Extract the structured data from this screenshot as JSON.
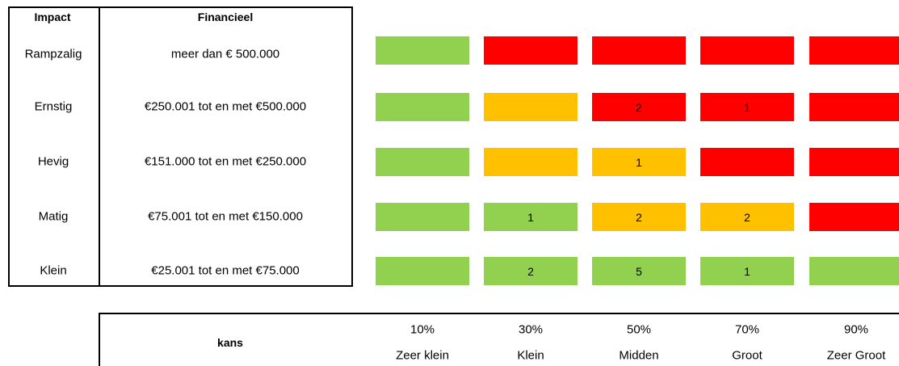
{
  "impact_table": {
    "headers": [
      "Impact",
      "Financieel"
    ],
    "rows": [
      {
        "impact": "Rampzalig",
        "financieel": "meer dan € 500.000"
      },
      {
        "impact": "Ernstig",
        "financieel": "€250.001 tot en met €500.000"
      },
      {
        "impact": "Hevig",
        "financieel": "€151.000 tot en met €250.000"
      },
      {
        "impact": "Matig",
        "financieel": "€75.001 tot en met  €150.000"
      },
      {
        "impact": "Klein",
        "financieel": "€25.001 tot en met €75.000"
      }
    ]
  },
  "matrix": {
    "rows": [
      [
        {
          "color": "#92d050"
        },
        {
          "color": "#ff0000"
        },
        {
          "color": "#ff0000"
        },
        {
          "color": "#ff0000"
        },
        {
          "color": "#ff0000"
        }
      ],
      [
        {
          "color": "#92d050"
        },
        {
          "color": "#ffc000"
        },
        {
          "color": "#ff0000",
          "count": "2"
        },
        {
          "color": "#ff0000",
          "count": "1"
        },
        {
          "color": "#ff0000"
        }
      ],
      [
        {
          "color": "#92d050"
        },
        {
          "color": "#ffc000"
        },
        {
          "color": "#ffc000",
          "count": "1"
        },
        {
          "color": "#ff0000"
        },
        {
          "color": "#ff0000"
        }
      ],
      [
        {
          "color": "#92d050"
        },
        {
          "color": "#92d050",
          "count": "1"
        },
        {
          "color": "#ffc000",
          "count": "2"
        },
        {
          "color": "#ffc000",
          "count": "2"
        },
        {
          "color": "#ff0000"
        }
      ],
      [
        {
          "color": "#92d050"
        },
        {
          "color": "#92d050",
          "count": "2"
        },
        {
          "color": "#92d050",
          "count": "5"
        },
        {
          "color": "#92d050",
          "count": "1"
        },
        {
          "color": "#92d050"
        }
      ]
    ]
  },
  "kans": {
    "title": "kans",
    "columns": [
      {
        "percentage": "10%",
        "label": "Zeer klein"
      },
      {
        "percentage": "30%",
        "label": "Klein"
      },
      {
        "percentage": "50%",
        "label": "Midden"
      },
      {
        "percentage": "70%",
        "label": "Groot"
      },
      {
        "percentage": "90%",
        "label": "Zeer Groot"
      }
    ]
  }
}
